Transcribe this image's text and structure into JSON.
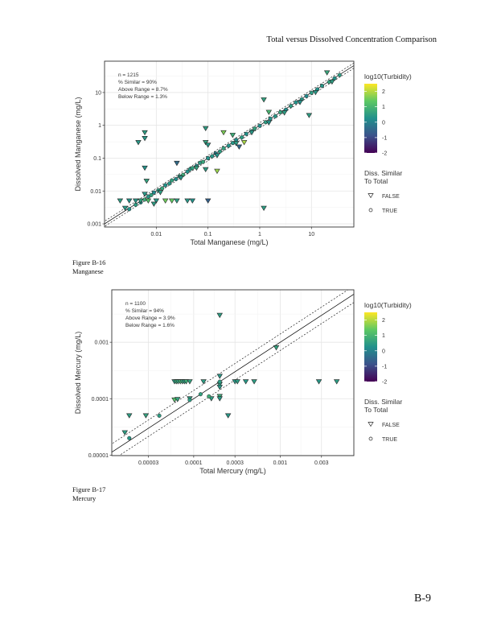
{
  "header": "Total versus Dissolved Concentration Comparison",
  "figures": [
    {
      "number": "Figure B-16",
      "name": "Manganese"
    },
    {
      "number": "Figure B-17",
      "name": "Mercury"
    }
  ],
  "page_number": "B-9",
  "colors": {
    "viridis": [
      "#440154",
      "#3B528B",
      "#21908C",
      "#5DC863",
      "#FDE725"
    ],
    "panel_border": "#333333",
    "grid": "#E5E5E5"
  },
  "chart_data": [
    {
      "type": "scatter",
      "title": "",
      "xlabel": "Total Manganese (mg/L)",
      "ylabel": "Dissolved Manganese (mg/L)",
      "xscale": "log",
      "yscale": "log",
      "xlim": [
        0.001,
        66
      ],
      "ylim": [
        0.0008,
        90
      ],
      "xticks": [
        {
          "v": 0.01,
          "label": "0.01"
        },
        {
          "v": 0.1,
          "label": "0.1"
        },
        {
          "v": 1,
          "label": "1"
        },
        {
          "v": 10,
          "label": "10"
        }
      ],
      "yticks": [
        {
          "v": 0.001,
          "label": "0.001"
        },
        {
          "v": 0.01,
          "label": "0.01"
        },
        {
          "v": 0.1,
          "label": "0.1"
        },
        {
          "v": 1,
          "label": "1"
        },
        {
          "v": 10,
          "label": "10"
        }
      ],
      "grid": true,
      "annotations": [
        "n = 1215",
        "% Similar = 90%",
        "Above Range = 8.7%",
        "Below Range = 1.3%"
      ],
      "reference_lines": {
        "identity": true,
        "band_factor": 1.2
      },
      "legend": {
        "placement": "right",
        "color_title": "log10(Turbidity)",
        "color_ticks": [
          "2",
          "1",
          "0",
          "-1",
          "-2"
        ],
        "color_range": [
          -2,
          2.5
        ],
        "shape_title": [
          "Diss. Similar",
          "To Total"
        ],
        "shape_entries": [
          "FALSE",
          "TRUE"
        ]
      },
      "points_format": [
        "total",
        "dissolved",
        "log10_turbidity",
        "similar"
      ],
      "points": [
        [
          0.003,
          0.0028,
          0.3,
          true
        ],
        [
          0.004,
          0.0038,
          0.5,
          true
        ],
        [
          0.005,
          0.0045,
          0.2,
          true
        ],
        [
          0.006,
          0.0055,
          0.8,
          true
        ],
        [
          0.007,
          0.0068,
          0.4,
          true
        ],
        [
          0.008,
          0.0075,
          0.6,
          true
        ],
        [
          0.009,
          0.009,
          0.1,
          true
        ],
        [
          0.011,
          0.0105,
          0.5,
          true
        ],
        [
          0.013,
          0.012,
          0.7,
          true
        ],
        [
          0.015,
          0.015,
          0.3,
          true
        ],
        [
          0.018,
          0.017,
          0.4,
          true
        ],
        [
          0.02,
          0.021,
          0.6,
          true
        ],
        [
          0.024,
          0.023,
          0.2,
          true
        ],
        [
          0.028,
          0.028,
          0.5,
          true
        ],
        [
          0.033,
          0.031,
          0.8,
          true
        ],
        [
          0.04,
          0.039,
          0.3,
          true
        ],
        [
          0.045,
          0.046,
          0.4,
          true
        ],
        [
          0.05,
          0.05,
          0.6,
          true
        ],
        [
          0.06,
          0.058,
          0.1,
          true
        ],
        [
          0.07,
          0.072,
          0.5,
          true
        ],
        [
          0.08,
          0.077,
          0.7,
          true
        ],
        [
          0.1,
          0.1,
          0.3,
          true
        ],
        [
          0.12,
          0.115,
          0.4,
          true
        ],
        [
          0.14,
          0.14,
          0.0,
          true
        ],
        [
          0.17,
          0.16,
          0.5,
          true
        ],
        [
          0.2,
          0.2,
          0.6,
          true
        ],
        [
          0.25,
          0.24,
          0.3,
          true
        ],
        [
          0.3,
          0.29,
          0.4,
          true
        ],
        [
          0.35,
          0.36,
          0.2,
          true
        ],
        [
          0.45,
          0.43,
          0.5,
          true
        ],
        [
          0.55,
          0.55,
          0.3,
          true
        ],
        [
          0.7,
          0.66,
          0.4,
          true
        ],
        [
          0.8,
          0.8,
          0.6,
          true
        ],
        [
          1.0,
          0.97,
          0.2,
          true
        ],
        [
          1.3,
          1.25,
          0.5,
          true
        ],
        [
          1.6,
          1.6,
          0.3,
          true
        ],
        [
          2.0,
          1.9,
          0.4,
          true
        ],
        [
          2.5,
          2.5,
          0.6,
          true
        ],
        [
          3.2,
          3.0,
          0.2,
          true
        ],
        [
          4.0,
          3.9,
          0.5,
          true
        ],
        [
          5.0,
          5.0,
          0.3,
          true
        ],
        [
          6.5,
          6.2,
          0.4,
          true
        ],
        [
          8.0,
          7.8,
          0.1,
          true
        ],
        [
          10,
          9.8,
          0.5,
          true
        ],
        [
          13,
          12.5,
          0.3,
          true
        ],
        [
          16,
          16,
          0.4,
          true
        ],
        [
          22,
          21,
          0.6,
          true
        ],
        [
          28,
          27,
          0.3,
          true
        ],
        [
          35,
          34,
          0.5,
          true
        ],
        [
          0.012,
          0.009,
          0.5,
          false
        ],
        [
          0.03,
          0.025,
          0.4,
          false
        ],
        [
          0.06,
          0.05,
          0.6,
          false
        ],
        [
          0.15,
          0.12,
          0.3,
          false
        ],
        [
          0.35,
          0.28,
          0.5,
          false
        ],
        [
          0.7,
          0.6,
          0.4,
          false
        ],
        [
          1.5,
          1.2,
          0.3,
          false
        ],
        [
          3,
          2.4,
          0.5,
          false
        ],
        [
          6,
          5,
          0.3,
          false
        ],
        [
          12,
          10,
          0.4,
          false
        ],
        [
          25,
          21,
          0.5,
          false
        ],
        [
          0.0045,
          0.3,
          0.4,
          false
        ],
        [
          0.006,
          0.6,
          0.5,
          false
        ],
        [
          0.006,
          0.4,
          0.4,
          false
        ],
        [
          0.006,
          0.05,
          0.3,
          false
        ],
        [
          0.0065,
          0.02,
          0.6,
          false
        ],
        [
          0.006,
          0.008,
          0.4,
          false
        ],
        [
          0.002,
          0.005,
          0.5,
          false
        ],
        [
          0.003,
          0.005,
          0.3,
          false
        ],
        [
          0.004,
          0.005,
          0.4,
          false
        ],
        [
          0.005,
          0.005,
          0.6,
          false
        ],
        [
          0.007,
          0.005,
          1.2,
          false
        ],
        [
          0.01,
          0.005,
          0.4,
          false
        ],
        [
          0.015,
          0.005,
          1.5,
          false
        ],
        [
          0.02,
          0.005,
          1.4,
          false
        ],
        [
          0.025,
          0.005,
          0.5,
          false
        ],
        [
          0.04,
          0.005,
          0.4,
          false
        ],
        [
          0.05,
          0.005,
          0.3,
          false
        ],
        [
          0.1,
          0.005,
          -0.6,
          false
        ],
        [
          0.0025,
          0.003,
          0.4,
          false
        ],
        [
          0.009,
          0.004,
          0.5,
          false
        ],
        [
          0.09,
          0.8,
          0.5,
          false
        ],
        [
          0.09,
          0.3,
          0.6,
          false
        ],
        [
          0.1,
          0.25,
          0.4,
          false
        ],
        [
          0.15,
          0.04,
          1.8,
          false
        ],
        [
          0.2,
          0.6,
          1.6,
          false
        ],
        [
          0.3,
          0.5,
          0.8,
          false
        ],
        [
          1.2,
          0.003,
          0.5,
          false
        ],
        [
          1.2,
          6,
          0.6,
          false
        ],
        [
          1.5,
          2.5,
          1.0,
          false
        ],
        [
          9,
          2,
          0.5,
          false
        ],
        [
          0.4,
          0.22,
          -0.5,
          false
        ],
        [
          0.025,
          0.07,
          -0.4,
          false
        ],
        [
          0.09,
          0.045,
          0.5,
          false
        ],
        [
          20,
          40,
          0.7,
          false
        ],
        [
          0.5,
          0.3,
          1.9,
          false
        ]
      ]
    },
    {
      "type": "scatter",
      "title": "",
      "xlabel": "Total Mercury (mg/L)",
      "ylabel": "Dissolved Mercury (mg/L)",
      "xscale": "log",
      "yscale": "log",
      "xlim": [
        1.13e-05,
        0.0071
      ],
      "ylim": [
        9.8e-06,
        0.0085
      ],
      "xticks": [
        {
          "v": 3e-05,
          "label": "0.00003"
        },
        {
          "v": 0.0001,
          "label": "0.0001"
        },
        {
          "v": 0.0003,
          "label": "0.0003"
        },
        {
          "v": 0.001,
          "label": "0.001"
        },
        {
          "v": 0.003,
          "label": "0.003"
        }
      ],
      "yticks": [
        {
          "v": 1e-05,
          "label": "0.00001"
        },
        {
          "v": 0.0001,
          "label": "0.0001"
        },
        {
          "v": 0.001,
          "label": "0.001"
        }
      ],
      "grid": true,
      "annotations": [
        "n = 1100",
        "% Similar = 94%",
        "Above Range = 3.9%",
        "Below Range = 1.6%"
      ],
      "reference_lines": {
        "identity": true,
        "band_factor": 1.4
      },
      "legend": {
        "placement": "right",
        "color_title": "log10(Turbidity)",
        "color_ticks": [
          "2",
          "1",
          "0",
          "-1",
          "-2"
        ],
        "color_range": [
          -2,
          2.5
        ],
        "shape_title": [
          "Diss. Similar",
          "To Total"
        ],
        "shape_entries": [
          "FALSE",
          "TRUE"
        ]
      },
      "points_format": [
        "total",
        "dissolved",
        "log10_turbidity",
        "similar"
      ],
      "points": [
        [
          6e-05,
          0.0002,
          0.5,
          false
        ],
        [
          6.3e-05,
          0.0002,
          0.8,
          false
        ],
        [
          6.6e-05,
          0.0002,
          0.6,
          false
        ],
        [
          7e-05,
          0.0002,
          0.9,
          false
        ],
        [
          7.4e-05,
          0.0002,
          0.7,
          false
        ],
        [
          7.8e-05,
          0.0002,
          0.5,
          false
        ],
        [
          8.2e-05,
          0.0002,
          0.8,
          false
        ],
        [
          9e-05,
          0.0002,
          0.6,
          false
        ],
        [
          0.00013,
          0.0002,
          0.5,
          false
        ],
        [
          0.0003,
          0.0002,
          0.4,
          false
        ],
        [
          0.00032,
          0.0002,
          0.5,
          false
        ],
        [
          0.0004,
          0.0002,
          0.4,
          false
        ],
        [
          0.0005,
          0.0002,
          0.5,
          false
        ],
        [
          0.0028,
          0.0002,
          0.4,
          false
        ],
        [
          0.0045,
          0.0002,
          0.5,
          false
        ],
        [
          0.0002,
          0.003,
          0.5,
          false
        ],
        [
          0.0002,
          0.00025,
          0.4,
          false
        ],
        [
          0.0002,
          0.00018,
          0.5,
          false
        ],
        [
          0.0002,
          0.00016,
          0.4,
          false
        ],
        [
          0.0002,
          0.00011,
          0.8,
          false
        ],
        [
          0.0002,
          0.0001,
          0.4,
          false
        ],
        [
          0.00016,
          0.0001,
          0.5,
          false
        ],
        [
          0.00025,
          5e-05,
          0.4,
          false
        ],
        [
          1.8e-05,
          5e-05,
          0.5,
          false
        ],
        [
          2.8e-05,
          5e-05,
          0.6,
          false
        ],
        [
          1.6e-05,
          2.5e-05,
          0.5,
          false
        ],
        [
          0.0009,
          0.0008,
          0.6,
          false
        ],
        [
          6e-05,
          9.5e-05,
          1.2,
          false
        ],
        [
          6.5e-05,
          9.7e-05,
          0.6,
          false
        ],
        [
          9e-05,
          0.0001,
          0.5,
          false
        ],
        [
          1.8e-05,
          2e-05,
          0.4,
          true
        ],
        [
          4e-05,
          5e-05,
          0.5,
          true
        ],
        [
          0.00012,
          0.00012,
          0.6,
          true
        ],
        [
          0.00015,
          0.00011,
          0.8,
          true
        ],
        [
          0.0002,
          0.0002,
          0.5,
          true
        ],
        [
          9e-05,
          9.5e-05,
          0.5,
          true
        ]
      ]
    }
  ]
}
